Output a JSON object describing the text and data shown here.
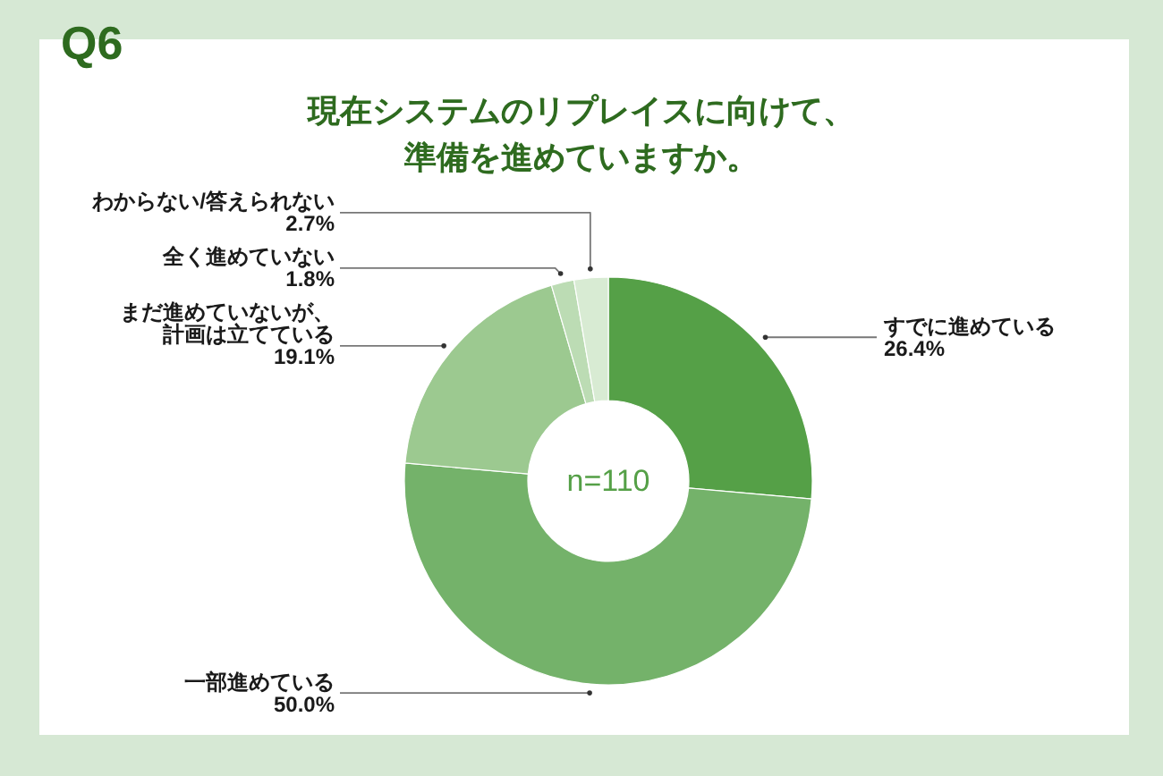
{
  "chart_data": {
    "type": "donut",
    "title": "現在システムのリプレイスに向けて、準備を進めていますか。",
    "categories": [
      "すでに進めている",
      "一部進めている",
      "まだ進めていないが、計画は立てている",
      "全く進めていない",
      "わからない/答えられない"
    ],
    "values": [
      26.4,
      50.0,
      19.1,
      1.8,
      2.7
    ],
    "colors": [
      "#55a047",
      "#74b26a",
      "#9cc990",
      "#bcdcb4",
      "#d8ebd3"
    ],
    "value_labels": [
      "26.4%",
      "50.0%",
      "19.1%",
      "1.8%",
      "2.7%"
    ],
    "annotations": [
      "Q6",
      "n=110"
    ]
  }
}
